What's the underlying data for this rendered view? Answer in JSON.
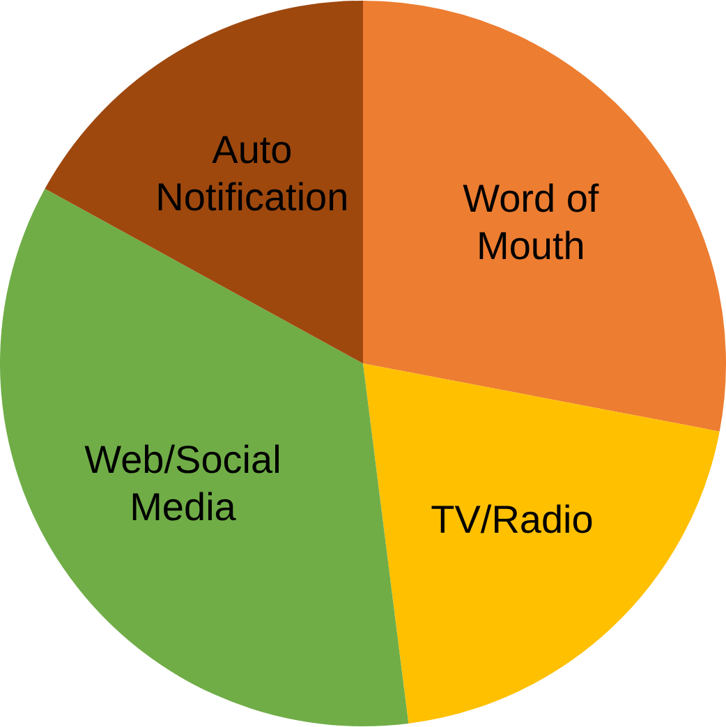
{
  "chart_data": {
    "type": "pie",
    "categories": [
      "Word of Mouth",
      "TV/Radio",
      "Web/Social Media",
      "Auto Notification"
    ],
    "values": [
      28,
      20,
      35,
      17
    ],
    "colors": [
      "#ed7d31",
      "#ffc000",
      "#70ad47",
      "#9e480e"
    ]
  }
}
